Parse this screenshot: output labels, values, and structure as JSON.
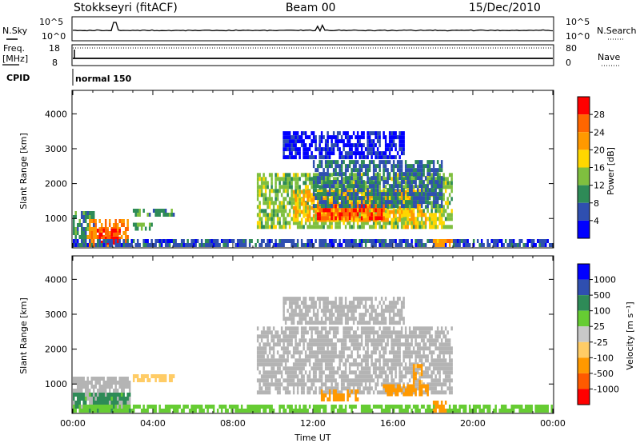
{
  "header": {
    "station": "Stokkseyri (fitACF)",
    "beam": "Beam 00",
    "date": "15/Dec/2010"
  },
  "aux_panel": {
    "nsky_label": "N.Sky",
    "nsearch_label": "N.Search",
    "noise_ticks": [
      "10^5",
      "10^0"
    ],
    "freq_label_1": "Freq.",
    "freq_label_2": "[MHz]",
    "freq_ticks": [
      "18",
      "8"
    ],
    "nave_label": "Nave",
    "nave_ticks": [
      "80",
      "0"
    ],
    "cpid_label": "CPID",
    "cpid_value": "normal 150"
  },
  "colors": {
    "power_scale": [
      "#0000ff",
      "#2f4fb0",
      "#2e8b57",
      "#7fbf3f",
      "#ffd700",
      "#ff9900",
      "#ff6600",
      "#ff0000"
    ],
    "velocity_scale": [
      "#ff0000",
      "#ff5a00",
      "#ff9900",
      "#ffcc66",
      "#c8c8c8",
      "#66cc33",
      "#2e8b57",
      "#2f4fb0",
      "#0000ff"
    ],
    "ground_scatter": "#b4b4b4"
  },
  "chart_data": [
    {
      "type": "heatmap",
      "panel": "power",
      "xlabel": "Time UT",
      "ylabel": "Slant Range [km]",
      "x_ticks": [
        "00:00",
        "04:00",
        "08:00",
        "12:00",
        "16:00",
        "20:00",
        "00:00"
      ],
      "x_range_hours": [
        0,
        24
      ],
      "y_ticks": [
        1000,
        2000,
        3000,
        4000
      ],
      "y_range_km": [
        180,
        4650
      ],
      "colorbar_label": "Power [dB]",
      "colorbar_ticks": [
        "28",
        "24",
        "20",
        "16",
        "12",
        "8",
        "4"
      ],
      "colorbar_range": [
        0,
        32
      ],
      "regions": [
        {
          "t0": 0.0,
          "t1": 1.0,
          "r0": 180,
          "r1": 1200,
          "level": 10
        },
        {
          "t0": 0.7,
          "t1": 2.8,
          "r0": 180,
          "r1": 900,
          "level": 24
        },
        {
          "t0": 1.2,
          "t1": 2.4,
          "r0": 250,
          "r1": 650,
          "level": 29
        },
        {
          "t0": 0.0,
          "t1": 24.0,
          "r0": 180,
          "r1": 300,
          "level": 6
        },
        {
          "t0": 3.0,
          "t1": 5.0,
          "r0": 1050,
          "r1": 1200,
          "level": 10
        },
        {
          "t0": 3.0,
          "t1": 4.0,
          "r0": 650,
          "r1": 800,
          "level": 12
        },
        {
          "t0": 9.2,
          "t1": 19.0,
          "r0": 700,
          "r1": 2300,
          "level": 14
        },
        {
          "t0": 11.0,
          "t1": 17.5,
          "r0": 900,
          "r1": 1800,
          "level": 20
        },
        {
          "t0": 12.2,
          "t1": 15.5,
          "r0": 950,
          "r1": 1300,
          "level": 28
        },
        {
          "t0": 12.0,
          "t1": 18.5,
          "r0": 1300,
          "r1": 2600,
          "level": 8
        },
        {
          "t0": 10.5,
          "t1": 16.5,
          "r0": 2700,
          "r1": 3500,
          "level": 3
        },
        {
          "t0": 16.5,
          "t1": 18.5,
          "r0": 700,
          "r1": 1100,
          "level": 18
        },
        {
          "t0": 18.0,
          "t1": 19.0,
          "r0": 180,
          "r1": 400,
          "level": 22
        }
      ]
    },
    {
      "type": "heatmap",
      "panel": "velocity",
      "xlabel": "Time UT",
      "ylabel": "Slant Range [km]",
      "x_ticks": [
        "00:00",
        "04:00",
        "08:00",
        "12:00",
        "16:00",
        "20:00",
        "00:00"
      ],
      "x_range_hours": [
        0,
        24
      ],
      "y_ticks": [
        1000,
        2000,
        3000,
        4000
      ],
      "y_range_km": [
        180,
        4650
      ],
      "colorbar_label": "Velocity [m s⁻¹]",
      "colorbar_ticks": [
        "1000",
        "500",
        "100",
        "25",
        "-25",
        "-100",
        "-500",
        "-1000"
      ],
      "regions": [
        {
          "t0": 0.0,
          "t1": 2.9,
          "r0": 180,
          "r1": 1200,
          "vel": 0
        },
        {
          "t0": 0.0,
          "t1": 2.9,
          "r0": 180,
          "r1": 750,
          "vel": 150
        },
        {
          "t0": 0.0,
          "t1": 24.0,
          "r0": 180,
          "r1": 300,
          "vel": 60
        },
        {
          "t0": 3.0,
          "t1": 5.0,
          "r0": 1050,
          "r1": 1200,
          "vel": -50
        },
        {
          "t0": 9.2,
          "t1": 19.0,
          "r0": 700,
          "r1": 2600,
          "vel": 0
        },
        {
          "t0": 10.5,
          "t1": 16.5,
          "r0": 2700,
          "r1": 3500,
          "vel": 0
        },
        {
          "t0": 12.3,
          "t1": 14.2,
          "r0": 500,
          "r1": 800,
          "vel": -300
        },
        {
          "t0": 15.5,
          "t1": 17.8,
          "r0": 650,
          "r1": 950,
          "vel": -300
        },
        {
          "t0": 17.0,
          "t1": 17.5,
          "r0": 1000,
          "r1": 1500,
          "vel": -150
        },
        {
          "t0": 18.0,
          "t1": 18.7,
          "r0": 180,
          "r1": 450,
          "vel": -300
        }
      ]
    }
  ]
}
